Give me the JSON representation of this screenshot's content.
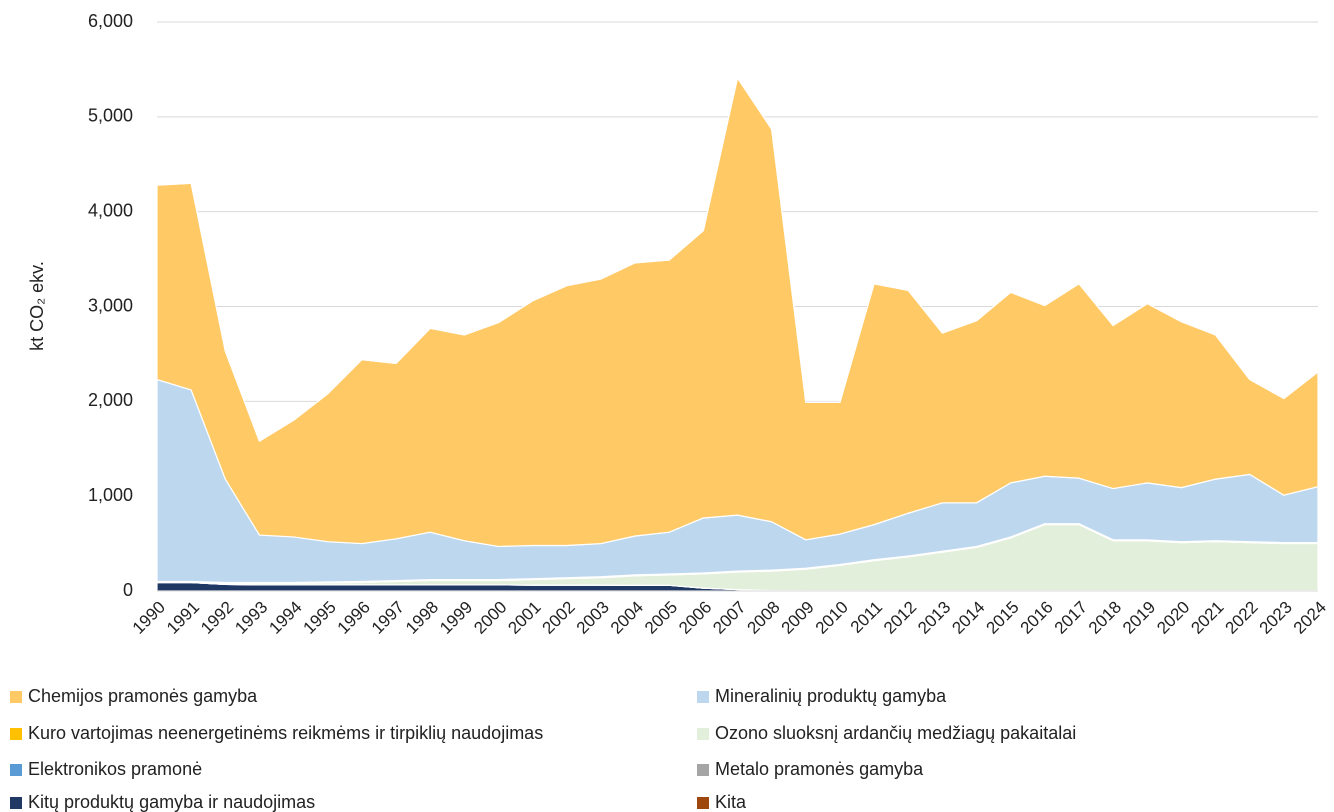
{
  "chart_data": {
    "type": "stacked_area",
    "y_label": "kt CO₂ ekv.",
    "categories": [
      "1990",
      "1991",
      "1992",
      "1993",
      "1994",
      "1995",
      "1996",
      "1997",
      "1998",
      "1999",
      "2000",
      "2001",
      "2002",
      "2003",
      "2004",
      "2005",
      "2006",
      "2007",
      "2008",
      "2009",
      "2010",
      "2011",
      "2012",
      "2013",
      "2014",
      "2015",
      "2016",
      "2017",
      "2018",
      "2019",
      "2020",
      "2021",
      "2022",
      "2023",
      "2024"
    ],
    "ylim": [
      0,
      6000
    ],
    "yticks": [
      0,
      {
        "value": 1000,
        "label": "1,000"
      },
      {
        "value": 2000,
        "label": "2,000"
      },
      {
        "value": 3000,
        "label": "3,000"
      },
      {
        "value": 4000,
        "label": "4,000"
      },
      {
        "value": 5000,
        "label": "5,000"
      },
      {
        "value": 6000,
        "label": "6,000"
      }
    ],
    "grid": true,
    "legend": "bottom",
    "series": [
      {
        "name": "Kitų produktų gamyba ir naudojimas",
        "color": "#203864",
        "values": [
          90,
          90,
          70,
          65,
          65,
          65,
          65,
          65,
          65,
          65,
          65,
          62,
          62,
          62,
          60,
          60,
          30,
          15,
          5,
          3,
          3,
          3,
          3,
          3,
          3,
          3,
          3,
          3,
          3,
          3,
          3,
          3,
          3,
          3,
          3
        ]
      },
      {
        "name": "Metalo pramonės gamyba",
        "color": "#a5a5a5",
        "values": [
          0,
          0,
          0,
          0,
          0,
          0,
          0,
          0,
          0,
          0,
          0,
          0,
          0,
          0,
          0,
          0,
          0,
          0,
          0,
          0,
          0,
          0,
          0,
          0,
          0,
          0,
          0,
          0,
          0,
          0,
          0,
          0,
          0,
          0,
          0
        ]
      },
      {
        "name": "Elektronikos pramonė",
        "color": "#5b9bd5",
        "values": [
          0,
          0,
          0,
          0,
          0,
          0,
          0,
          0,
          0,
          0,
          0,
          0,
          0,
          0,
          0,
          0,
          0,
          0,
          0,
          0,
          0,
          0,
          0,
          0,
          0,
          0,
          0,
          0,
          0,
          0,
          0,
          0,
          0,
          0,
          0
        ]
      },
      {
        "name": "Ozono sluoksnį ardančių medžiagų pakaitalai",
        "color": "#e2efda",
        "values": [
          0,
          0,
          10,
          15,
          15,
          20,
          25,
          35,
          45,
          45,
          45,
          58,
          68,
          78,
          100,
          110,
          150,
          185,
          205,
          227,
          267,
          317,
          357,
          407,
          457,
          557,
          697,
          697,
          527,
          527,
          507,
          517,
          507,
          497,
          497
        ]
      },
      {
        "name": "Kuro vartojimas neenergetinėms reikmėms ir tirpiklių naudojimas",
        "color": "#ffc000",
        "values": [
          10,
          10,
          10,
          10,
          10,
          10,
          10,
          10,
          10,
          10,
          10,
          10,
          10,
          10,
          10,
          10,
          10,
          10,
          10,
          10,
          10,
          10,
          10,
          10,
          10,
          10,
          10,
          10,
          10,
          10,
          10,
          10,
          10,
          10,
          10
        ]
      },
      {
        "name": "Mineralinių produktų gamyba",
        "color": "#bdd7ee",
        "values": [
          2130,
          2020,
          1090,
          500,
          480,
          425,
          400,
          440,
          500,
          410,
          350,
          350,
          340,
          350,
          410,
          440,
          580,
          590,
          510,
          300,
          320,
          370,
          450,
          510,
          460,
          570,
          500,
          480,
          540,
          600,
          570,
          650,
          710,
          500,
          590
        ]
      },
      {
        "name": "Chemijos pramonės gamyba",
        "color": "#ffc966",
        "values": [
          2050,
          2180,
          1350,
          990,
          1230,
          1560,
          1940,
          1850,
          2150,
          2170,
          2360,
          2580,
          2740,
          2790,
          2880,
          2870,
          3030,
          4610,
          4140,
          1450,
          1390,
          2540,
          2350,
          1790,
          1920,
          2010,
          1800,
          2050,
          1720,
          1890,
          1750,
          1520,
          1000,
          1020,
          1210
        ]
      },
      {
        "name": "Kita",
        "color": "#9e480e",
        "values": [
          0,
          0,
          0,
          0,
          0,
          0,
          0,
          0,
          0,
          0,
          0,
          0,
          0,
          0,
          0,
          0,
          0,
          0,
          0,
          0,
          0,
          0,
          0,
          0,
          0,
          0,
          0,
          0,
          0,
          0,
          0,
          0,
          0,
          0,
          0
        ]
      }
    ]
  }
}
